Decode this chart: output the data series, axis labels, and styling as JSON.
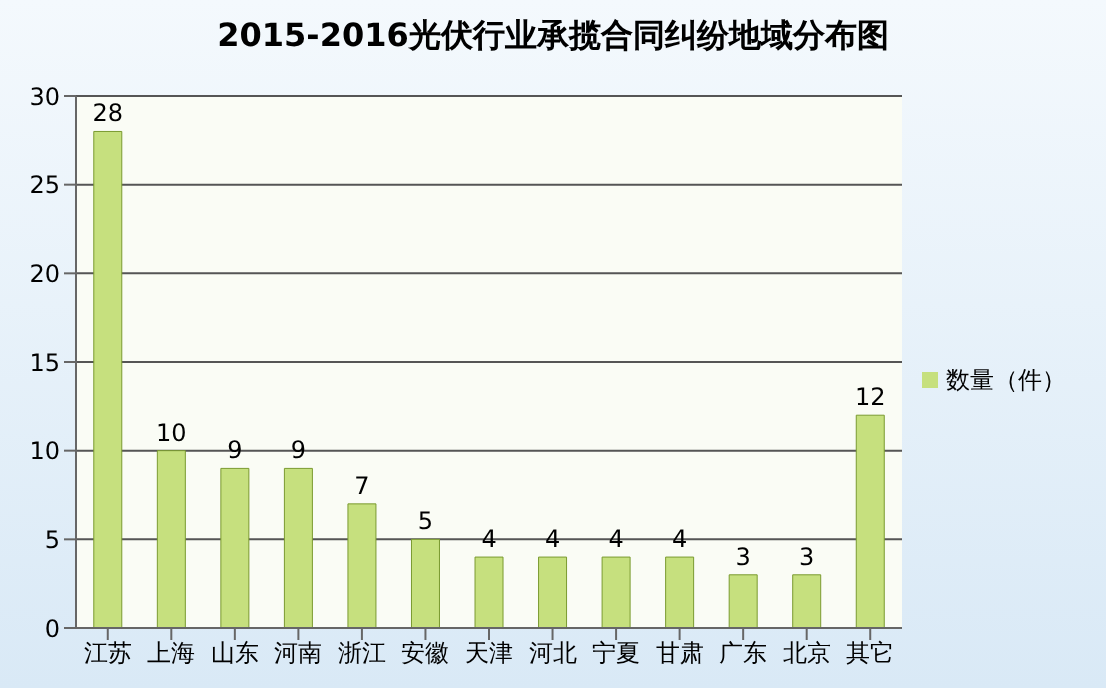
{
  "chart_data": {
    "type": "bar",
    "title": "2015-2016光伏行业承揽合同纠纷地域分布图",
    "categories": [
      "江苏",
      "上海",
      "山东",
      "河南",
      "浙江",
      "安徽",
      "天津",
      "河北",
      "宁夏",
      "甘肃",
      "广东",
      "北京",
      "其它"
    ],
    "series": [
      {
        "name": "数量（件）",
        "color": "#c6e07e",
        "values": [
          28,
          10,
          9,
          9,
          7,
          5,
          4,
          4,
          4,
          4,
          3,
          3,
          12
        ]
      }
    ],
    "ylim": [
      0,
      30
    ],
    "yticks": [
      0,
      5,
      10,
      15,
      20,
      25,
      30
    ],
    "grid": "y",
    "legend": "right",
    "data_labels": true
  }
}
